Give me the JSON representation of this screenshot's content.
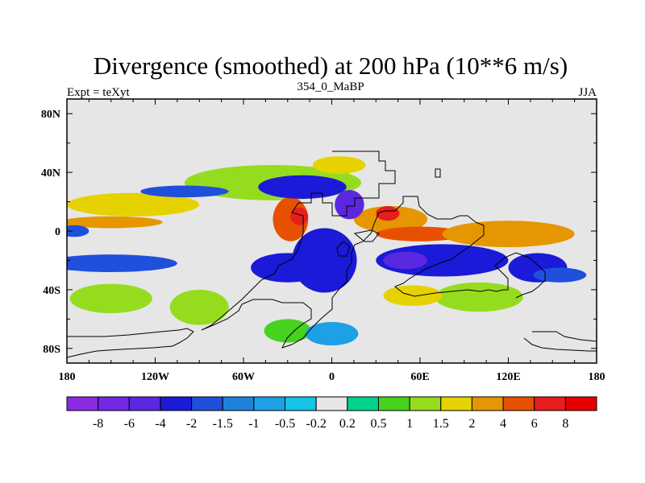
{
  "chart_data": {
    "type": "heatmap",
    "title": "Divergence (smoothed) at 200 hPa (10**6 m/s)",
    "left_string": "Expt = teXyt",
    "center_string": "354_0_MaBP",
    "right_string": "JJA",
    "x_axis": {
      "range": [
        -180,
        180
      ],
      "ticks": [
        {
          "value": -180,
          "label": "180"
        },
        {
          "value": -120,
          "label": "120W"
        },
        {
          "value": -60,
          "label": "60W"
        },
        {
          "value": 0,
          "label": "0"
        },
        {
          "value": 60,
          "label": "60E"
        },
        {
          "value": 120,
          "label": "120E"
        },
        {
          "value": 180,
          "label": "180"
        }
      ]
    },
    "y_axis": {
      "range": [
        -90,
        90
      ],
      "ticks": [
        {
          "value": 80,
          "label": "80N"
        },
        {
          "value": 40,
          "label": "40N"
        },
        {
          "value": 0,
          "label": "0"
        },
        {
          "value": -40,
          "label": "40S"
        },
        {
          "value": -80,
          "label": "80S"
        }
      ]
    },
    "colorbar": {
      "levels": [
        "-8",
        "-6",
        "-4",
        "-2",
        "-1.5",
        "-1",
        "-0.5",
        "-0.2",
        "0.2",
        "0.5",
        "1",
        "1.5",
        "2",
        "4",
        "6",
        "8"
      ],
      "colors": [
        "#8a2be2",
        "#7328e6",
        "#5a28e0",
        "#1a1ad8",
        "#1e50dc",
        "#1e82dc",
        "#1ea0e6",
        "#14c3e6",
        "#e6e6e6",
        "#00d28c",
        "#46d21e",
        "#96dc1e",
        "#e6d200",
        "#e69600",
        "#e65000",
        "#e61e1e",
        "#e60000"
      ]
    },
    "fields": [
      {
        "cx": -150,
        "cy": -46,
        "rx": 28,
        "ry": 10,
        "level": 11
      },
      {
        "cx": -40,
        "cy": 33,
        "rx": 60,
        "ry": 12,
        "level": 11
      },
      {
        "cx": 5,
        "cy": 45,
        "rx": 18,
        "ry": 6,
        "level": 12
      },
      {
        "cx": -135,
        "cy": 18,
        "rx": 45,
        "ry": 8,
        "level": 12
      },
      {
        "cx": -150,
        "cy": 6,
        "rx": 35,
        "ry": 4,
        "level": 13
      },
      {
        "cx": -28,
        "cy": 8,
        "rx": 12,
        "ry": 15,
        "level": 14
      },
      {
        "cx": -22,
        "cy": 10,
        "rx": 6,
        "ry": 6,
        "level": 15
      },
      {
        "cx": 40,
        "cy": 8,
        "rx": 25,
        "ry": 9,
        "level": 13
      },
      {
        "cx": 60,
        "cy": -2,
        "rx": 30,
        "ry": 5,
        "level": 14
      },
      {
        "cx": 120,
        "cy": -2,
        "rx": 45,
        "ry": 9,
        "level": 13
      },
      {
        "cx": 38,
        "cy": 12,
        "rx": 8,
        "ry": 5,
        "level": 15
      },
      {
        "cx": 100,
        "cy": -45,
        "rx": 30,
        "ry": 10,
        "level": 11
      },
      {
        "cx": 55,
        "cy": -44,
        "rx": 20,
        "ry": 7,
        "level": 12
      },
      {
        "cx": -90,
        "cy": -52,
        "rx": 20,
        "ry": 12,
        "level": 11
      },
      {
        "cx": -30,
        "cy": -68,
        "rx": 16,
        "ry": 8,
        "level": 10
      },
      {
        "cx": -20,
        "cy": 30,
        "rx": 30,
        "ry": 8,
        "level": 3
      },
      {
        "cx": -5,
        "cy": -20,
        "rx": 22,
        "ry": 22,
        "level": 3
      },
      {
        "cx": -30,
        "cy": -25,
        "rx": 25,
        "ry": 10,
        "level": 3
      },
      {
        "cx": 75,
        "cy": -20,
        "rx": 45,
        "ry": 11,
        "level": 3
      },
      {
        "cx": 140,
        "cy": -25,
        "rx": 20,
        "ry": 10,
        "level": 3
      },
      {
        "cx": -150,
        "cy": -22,
        "rx": 45,
        "ry": 6,
        "level": 4
      },
      {
        "cx": -100,
        "cy": 27,
        "rx": 30,
        "ry": 4,
        "level": 4
      },
      {
        "cx": -175,
        "cy": 0,
        "rx": 10,
        "ry": 4,
        "level": 4
      },
      {
        "cx": 12,
        "cy": 18,
        "rx": 10,
        "ry": 10,
        "level": 2
      },
      {
        "cx": 50,
        "cy": -20,
        "rx": 15,
        "ry": 6,
        "level": 2
      },
      {
        "cx": 0,
        "cy": -70,
        "rx": 18,
        "ry": 8,
        "level": 6
      },
      {
        "cx": 155,
        "cy": -30,
        "rx": 18,
        "ry": 5,
        "level": 4
      }
    ]
  }
}
